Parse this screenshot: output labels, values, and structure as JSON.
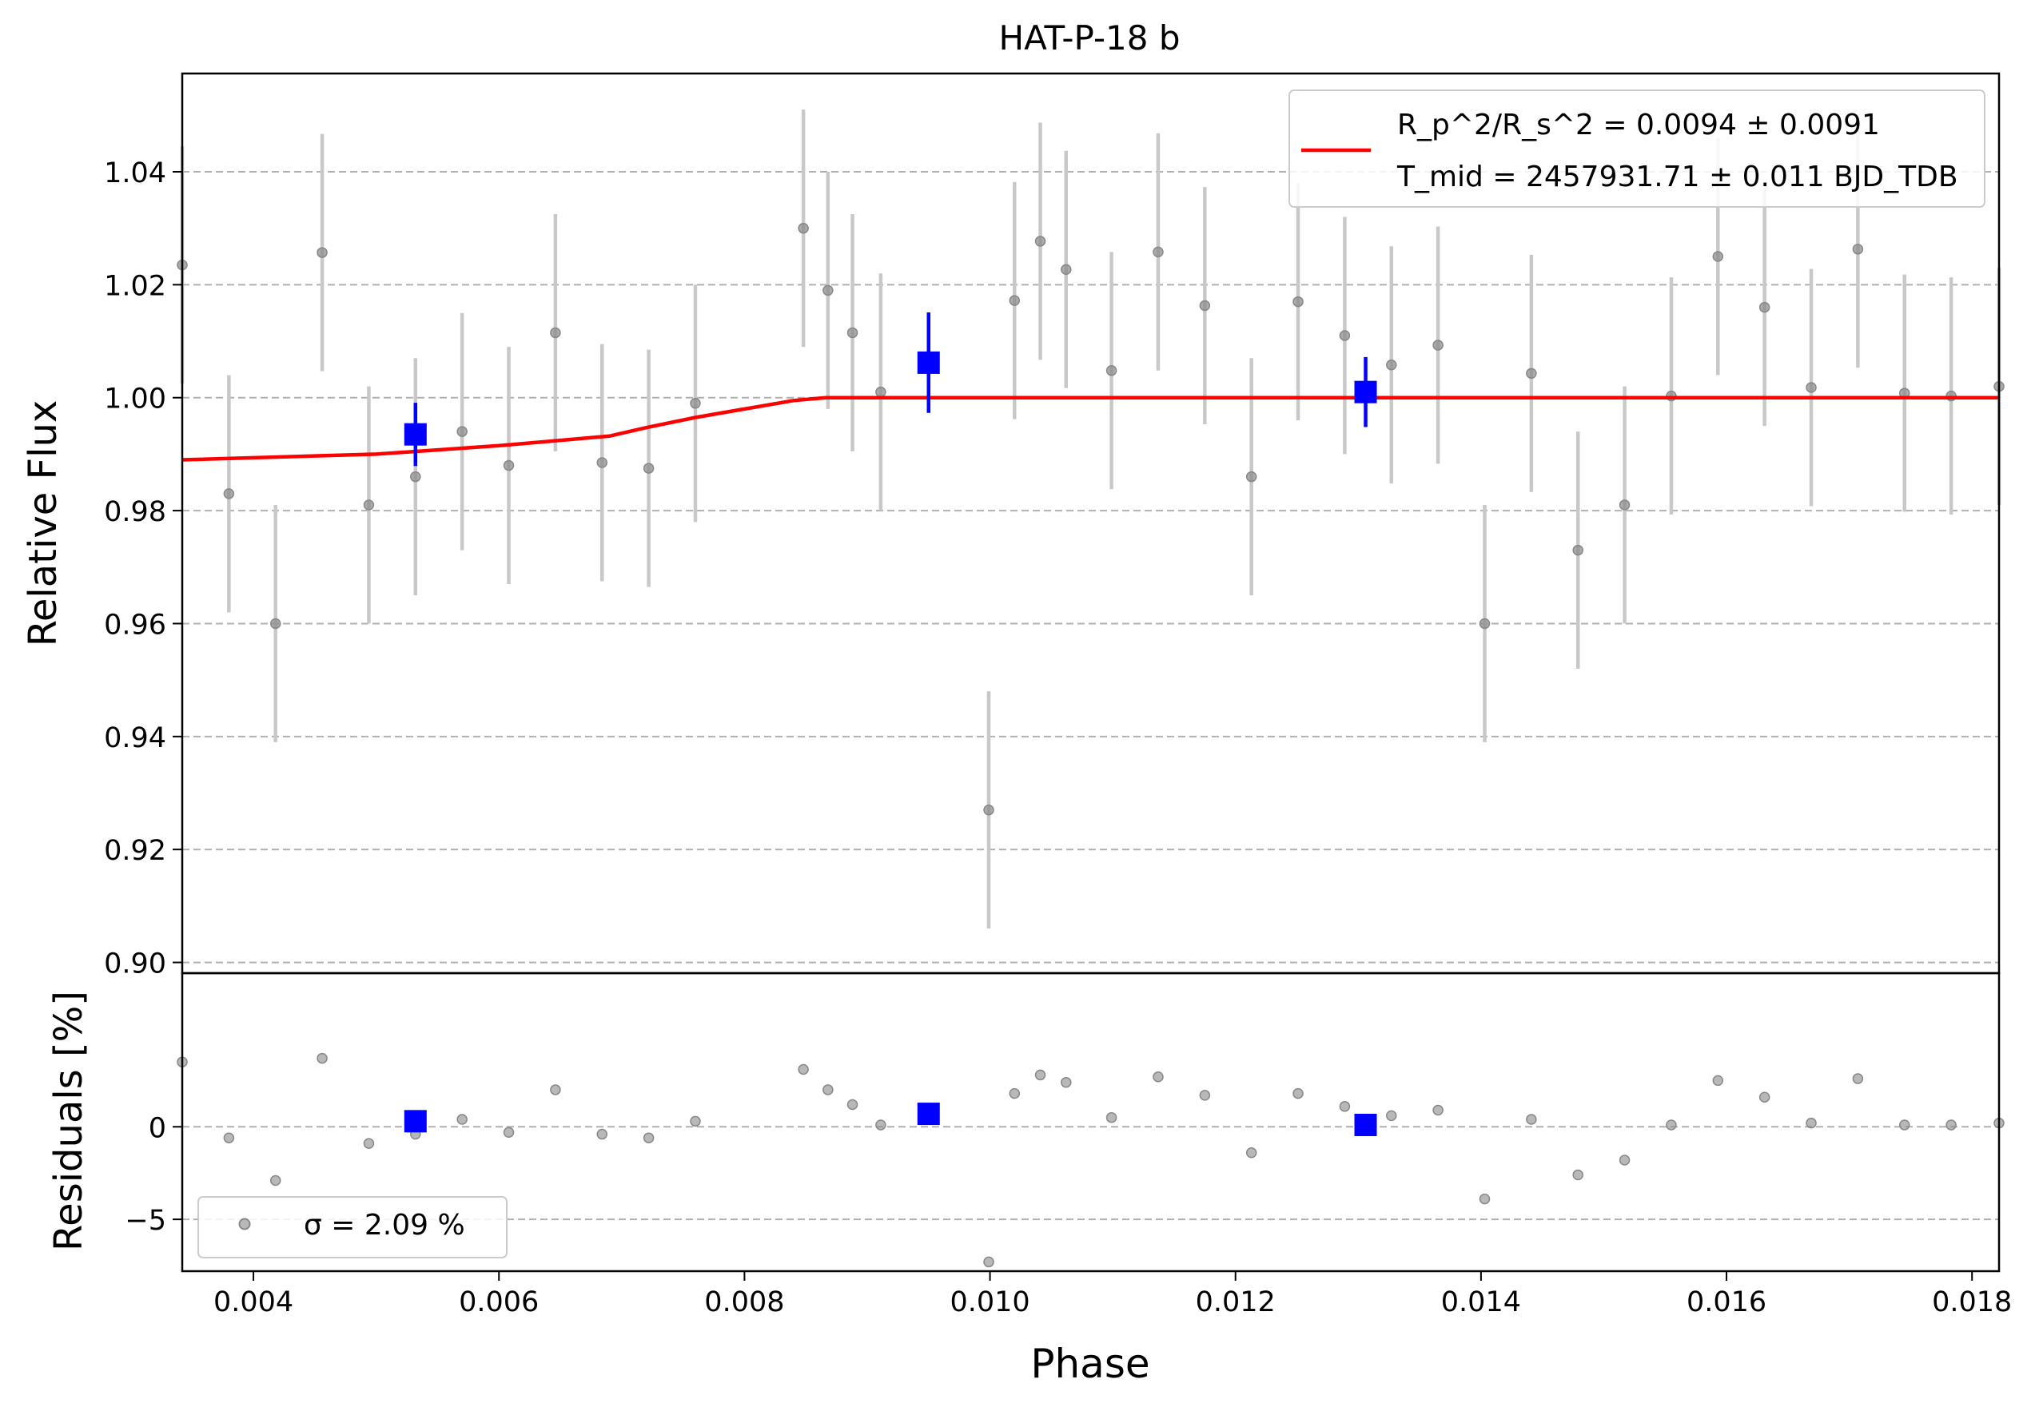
{
  "chart_data": [
    {
      "type": "scatter",
      "title": "HAT-P-18 b",
      "xlabel": "",
      "ylabel": "Relative Flux",
      "xlim": [
        0.00342,
        0.01822
      ],
      "ylim": [
        0.8981,
        1.0574
      ],
      "yticks": [
        0.9,
        0.92,
        0.94,
        0.96,
        0.98,
        1.0,
        1.02,
        1.04
      ],
      "ytick_labels": [
        "0.90",
        "0.92",
        "0.94",
        "0.96",
        "0.98",
        "1.00",
        "1.02",
        "1.04"
      ],
      "grid": "horizontal dashed",
      "legend_position": "upper-right",
      "legend": {
        "model_label_1": "R_p^2/R_s^2 = 0.0094 ± 0.0091",
        "model_label_2": "T_mid = 2457931.71 ± 0.011 BJD_TDB"
      },
      "colors": {
        "data": "#888888",
        "errorbar": "#c8c8c8",
        "binned": "#0000ff",
        "model": "#ff0000"
      },
      "data_x": [
        0.00342,
        0.0038,
        0.00418,
        0.00456,
        0.00494,
        0.00532,
        0.0057,
        0.00608,
        0.00646,
        0.00684,
        0.00722,
        0.0076,
        0.00848,
        0.00868,
        0.00888,
        0.00911,
        0.00999,
        0.0102,
        0.01041,
        0.01062,
        0.01099,
        0.01137,
        0.01175,
        0.01213,
        0.01251,
        0.01289,
        0.01327,
        0.01365,
        0.01403,
        0.01441,
        0.01479,
        0.01517,
        0.01555,
        0.01593,
        0.01631,
        0.01669,
        0.01707,
        0.01745,
        0.01783,
        0.01822
      ],
      "data_y": [
        1.0235,
        0.983,
        0.96,
        1.0257,
        0.981,
        0.986,
        0.994,
        0.988,
        1.0115,
        0.9885,
        0.9875,
        0.999,
        1.03,
        1.019,
        1.0115,
        1.001,
        0.927,
        1.0172,
        1.0277,
        1.0227,
        1.0048,
        1.0258,
        1.0163,
        0.986,
        1.017,
        1.011,
        1.0058,
        1.0093,
        0.96,
        1.0043,
        0.973,
        0.981,
        1.0003,
        1.025,
        1.016,
        1.0018,
        1.0263,
        1.0008,
        1.0003,
        1.002
      ],
      "data_yerr": 0.021,
      "binned_x": [
        0.00532,
        0.0095,
        0.01306
      ],
      "binned_y": [
        0.9935,
        1.0062,
        1.001
      ],
      "binned_yerr": [
        0.0056,
        0.0089,
        0.0062
      ],
      "model_x": [
        0.00342,
        0.005,
        0.006,
        0.0069,
        0.0072,
        0.0076,
        0.008,
        0.0084,
        0.00866,
        0.01822
      ],
      "model_y": [
        0.989,
        0.99,
        0.9915,
        0.9932,
        0.9947,
        0.9965,
        0.998,
        0.9995,
        1.0,
        1.0
      ]
    },
    {
      "type": "scatter",
      "xlabel": "Phase",
      "ylabel": "Residuals [%]",
      "xlim": [
        0.00342,
        0.01822
      ],
      "ylim": [
        -7.8,
        8.3
      ],
      "xticks": [
        0.004,
        0.006,
        0.008,
        0.01,
        0.012,
        0.014,
        0.016,
        0.018
      ],
      "xtick_labels": [
        "0.004",
        "0.006",
        "0.008",
        "0.010",
        "0.012",
        "0.014",
        "0.016",
        "0.018"
      ],
      "yticks": [
        -5,
        0
      ],
      "ytick_labels": [
        "−5",
        "0"
      ],
      "grid": "horizontal dashed",
      "legend_position": "lower-left",
      "legend": {
        "label": "σ = 2.09 %"
      },
      "residuals_y": [
        3.5,
        -0.6,
        -2.9,
        3.7,
        -0.9,
        -0.4,
        0.4,
        -0.3,
        2.0,
        -0.4,
        -0.6,
        0.3,
        3.1,
        2.0,
        1.2,
        0.1,
        -7.3,
        1.8,
        2.8,
        2.4,
        0.5,
        2.7,
        1.7,
        -1.4,
        1.8,
        1.1,
        0.6,
        0.9,
        -3.9,
        0.4,
        -2.6,
        -1.8,
        0.1,
        2.5,
        1.6,
        0.2,
        2.6,
        0.1,
        0.1,
        0.2
      ],
      "binned_residuals": [
        0.3,
        0.7,
        0.1
      ]
    }
  ]
}
